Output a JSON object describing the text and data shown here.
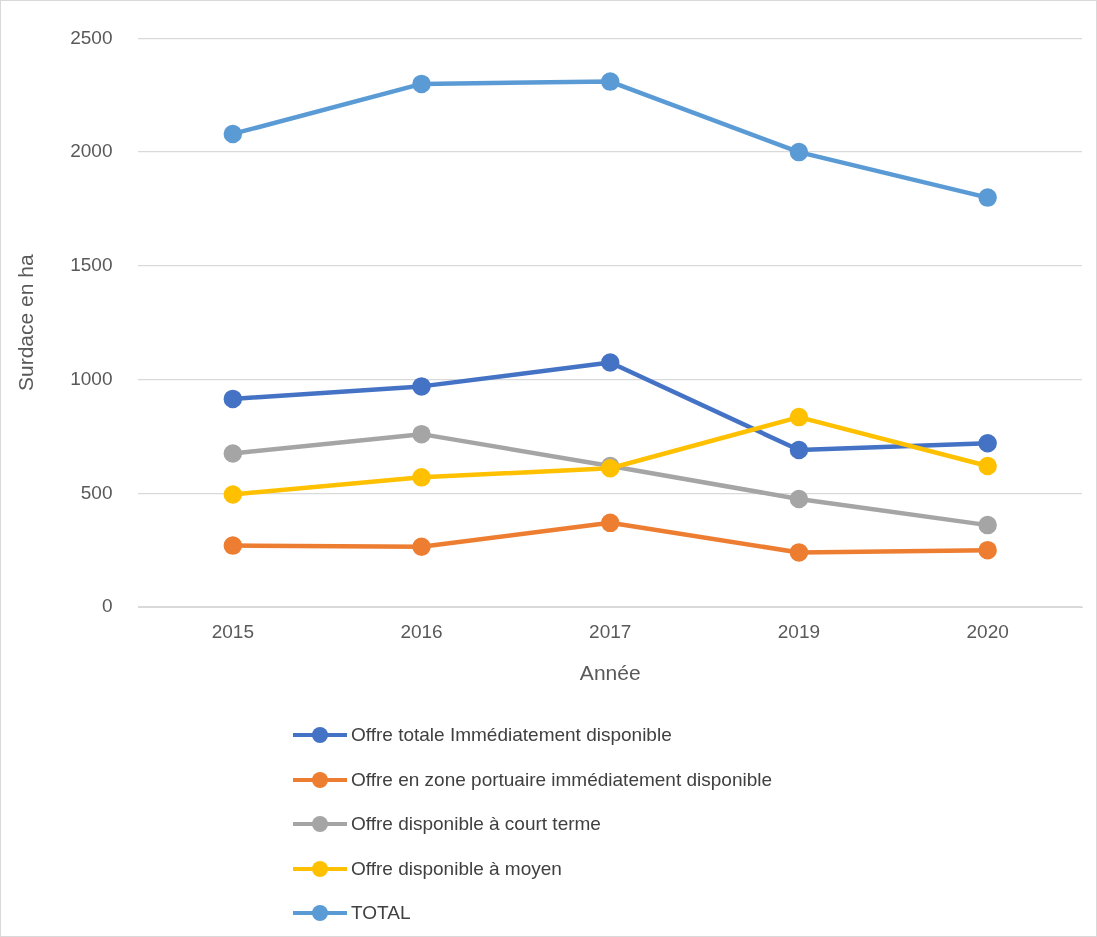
{
  "chart_data": {
    "type": "line",
    "xlabel": "Année",
    "ylabel": "Surdace en ha",
    "categories": [
      "2015",
      "2016",
      "2017",
      "2019",
      "2020"
    ],
    "ylim": [
      0,
      2500
    ],
    "yticks": [
      0,
      500,
      1000,
      1500,
      2000,
      2500
    ],
    "grid": "y",
    "legend": "bottom",
    "marker": "circle",
    "line_style": "solid",
    "series": [
      {
        "name": "Offre totale Immédiatement disponible",
        "color": "#4472c4",
        "values": [
          915,
          970,
          1075,
          690,
          720
        ]
      },
      {
        "name": "Offre en zone portuaire immédiatement disponible",
        "color": "#ed7d31",
        "values": [
          270,
          265,
          370,
          240,
          250
        ]
      },
      {
        "name": "Offre disponible à court terme",
        "color": "#a5a5a5",
        "values": [
          675,
          760,
          620,
          475,
          360
        ]
      },
      {
        "name": "Offre disponible à moyen",
        "color": "#ffc000",
        "values": [
          495,
          570,
          610,
          835,
          620
        ]
      },
      {
        "name": "TOTAL",
        "color": "#5b9bd5",
        "values": [
          2080,
          2300,
          2310,
          2000,
          1800
        ]
      }
    ]
  }
}
